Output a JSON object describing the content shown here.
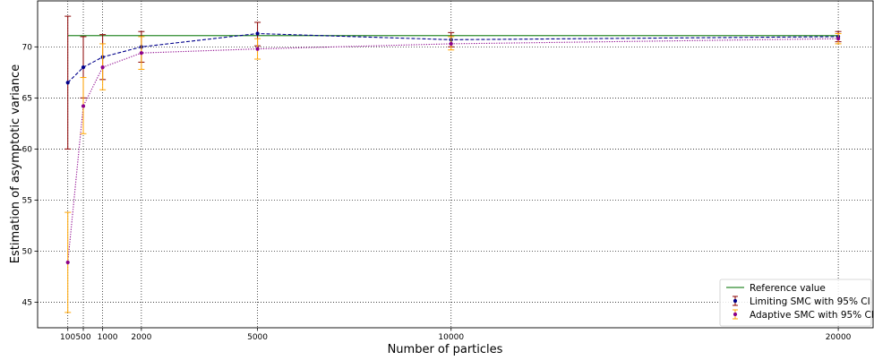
{
  "chart_data": {
    "type": "line",
    "title": "",
    "xlabel": "Number of particles",
    "ylabel": "Estimation of asymptotic variance",
    "xlim": [
      -680,
      20900
    ],
    "ylim": [
      42.5,
      74.5
    ],
    "x_ticks": [
      100,
      500,
      1000,
      2000,
      5000,
      10000,
      20000
    ],
    "x_tick_labels": [
      "100",
      "500",
      "1000",
      "2000",
      "5000",
      "10000",
      "20000"
    ],
    "y_ticks": [
      45,
      50,
      55,
      60,
      65,
      70
    ],
    "y_tick_labels": [
      "45",
      "50",
      "55",
      "60",
      "65",
      "70"
    ],
    "grid": true,
    "legend_position": "lower-right",
    "reference": {
      "name": "Reference value",
      "value": 71.1,
      "color": "#2e8b2e"
    },
    "series": [
      {
        "name": "Limiting SMC with 95% CI",
        "style": "dashed",
        "line_color": "#00008b",
        "marker_color": "#00008b",
        "errorbar_color": "#8b0000",
        "x": [
          100,
          500,
          1000,
          2000,
          5000,
          10000,
          20000
        ],
        "values": [
          66.5,
          68.0,
          69.0,
          70.0,
          71.3,
          70.7,
          71.0
        ],
        "lower": [
          60.0,
          65.0,
          66.8,
          68.5,
          70.1,
          70.0,
          70.5
        ],
        "upper": [
          73.0,
          71.0,
          71.2,
          71.5,
          72.4,
          71.4,
          71.5
        ]
      },
      {
        "name": "Adaptive SMC with 95% CI",
        "style": "dotted",
        "line_color": "#8b008b",
        "marker_color": "#8b008b",
        "errorbar_color": "#ffa500",
        "x": [
          100,
          500,
          1000,
          2000,
          5000,
          10000,
          20000
        ],
        "values": [
          48.9,
          64.2,
          68.0,
          69.4,
          69.8,
          70.3,
          70.8
        ],
        "lower": [
          44.0,
          61.5,
          65.8,
          67.8,
          68.8,
          69.7,
          70.3
        ],
        "upper": [
          53.8,
          67.0,
          70.3,
          71.0,
          70.8,
          71.0,
          71.3
        ]
      }
    ]
  }
}
